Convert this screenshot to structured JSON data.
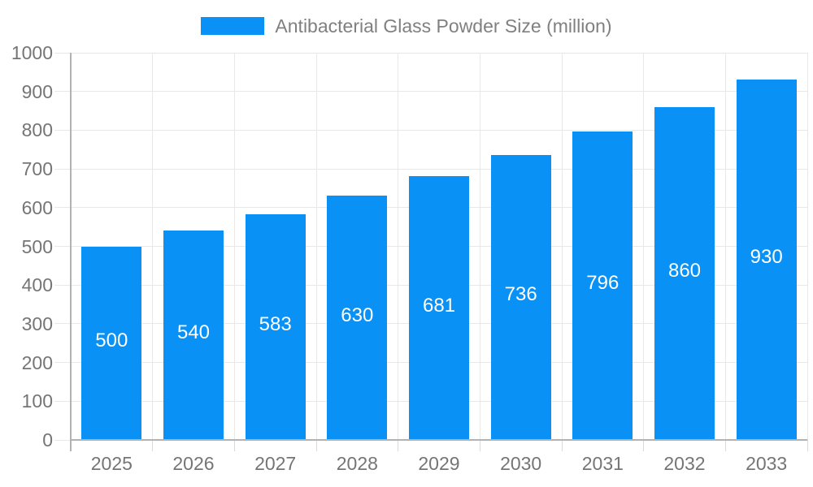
{
  "chart_data": {
    "type": "bar",
    "title": "Antibacterial Glass Powder Size (million)",
    "series_name": "Antibacterial Glass Powder Size (million)",
    "categories": [
      "2025",
      "2026",
      "2027",
      "2028",
      "2029",
      "2030",
      "2031",
      "2032",
      "2033"
    ],
    "values": [
      500,
      540,
      583,
      630,
      681,
      736,
      796,
      860,
      930
    ],
    "xlabel": "",
    "ylabel": "",
    "ylim": [
      0,
      1000
    ],
    "yticks": [
      0,
      100,
      200,
      300,
      400,
      500,
      600,
      700,
      800,
      900,
      1000
    ],
    "grid": true,
    "legend_position": "top",
    "colors": {
      "bar": "#0a91f5",
      "grid": "#e8e8e8",
      "tick": "#d9d9d9",
      "axis": "#b2b2b2",
      "axis_text": "#757575",
      "legend_text": "#808080",
      "data_label": "#ffffff",
      "background": "#ffffff"
    }
  }
}
